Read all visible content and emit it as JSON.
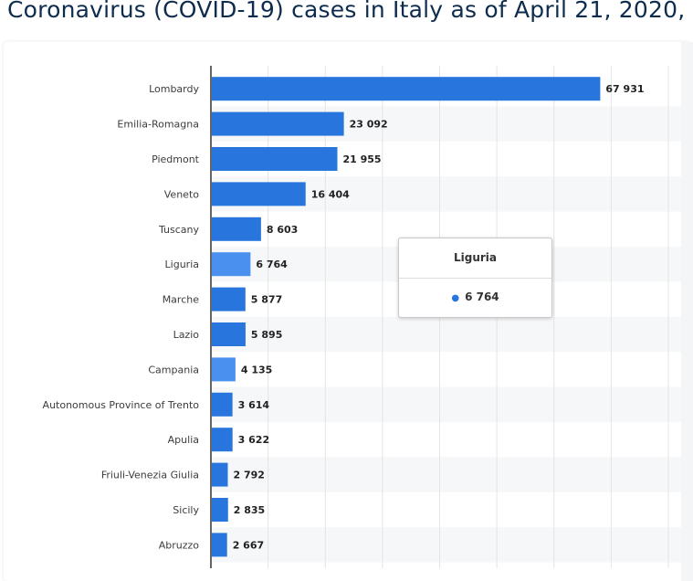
{
  "title": "Coronavirus (COVID-19) cases in Italy as of April 21, 2020,",
  "chart_data": {
    "type": "bar",
    "orientation": "horizontal",
    "categories": [
      "Lombardy",
      "Emilia-Romagna",
      "Piedmont",
      "Veneto",
      "Tuscany",
      "Liguria",
      "Marche",
      "Lazio",
      "Campania",
      "Autonomous Province of Trento",
      "Apulia",
      "Friuli-Venezia Giulia",
      "Sicily",
      "Abruzzo"
    ],
    "values": [
      67931,
      23092,
      21955,
      16404,
      8603,
      6764,
      5877,
      5895,
      4135,
      3614,
      3622,
      2792,
      2835,
      2667
    ],
    "value_labels": [
      "67 931",
      "23 092",
      "21 955",
      "16 404",
      "8 603",
      "6 764",
      "5 877",
      "5 895",
      "4 135",
      "3 614",
      "3 622",
      "2 792",
      "2 835",
      "2 667"
    ],
    "xlim": [
      0,
      80000
    ],
    "grid": true,
    "bar_color": "#2876dd",
    "highlight_color": "#4a90ef",
    "highlighted": [
      "Liguria",
      "Campania"
    ]
  },
  "tooltip": {
    "category": "Liguria",
    "value": "6 764"
  }
}
